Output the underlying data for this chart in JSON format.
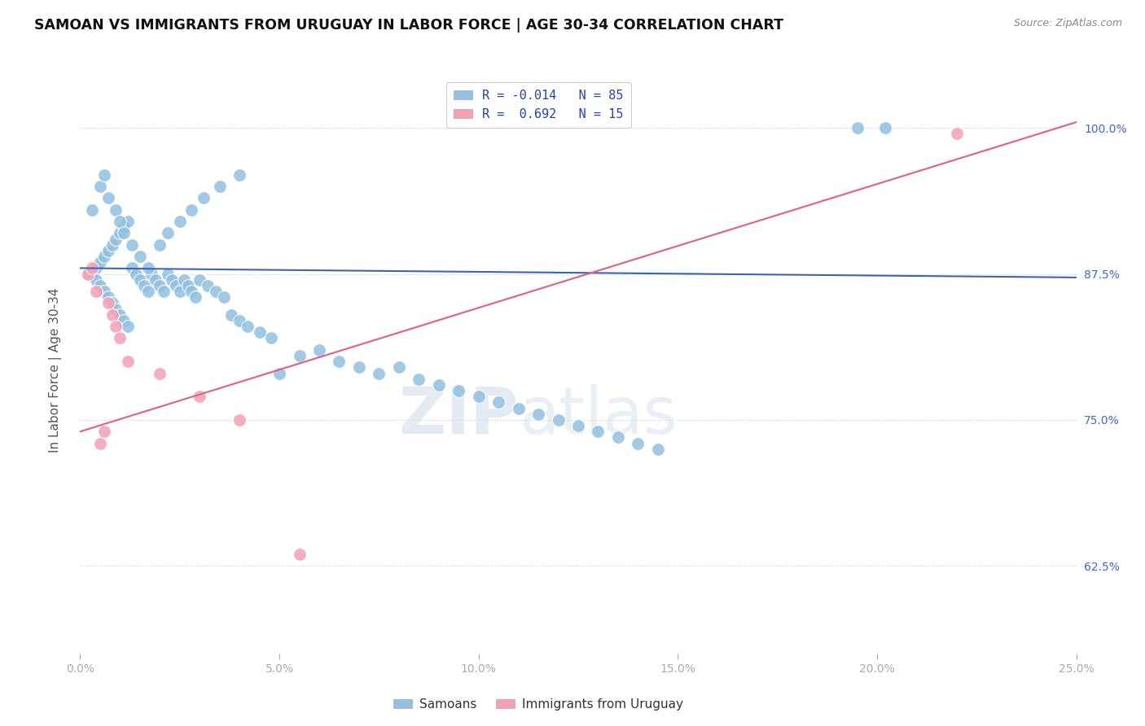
{
  "title": "SAMOAN VS IMMIGRANTS FROM URUGUAY IN LABOR FORCE | AGE 30-34 CORRELATION CHART",
  "source": "Source: ZipAtlas.com",
  "ylabel_label": "In Labor Force | Age 30-34",
  "xlim": [
    0.0,
    25.0
  ],
  "ylim": [
    55.0,
    103.5
  ],
  "yticks": [
    62.5,
    75.0,
    87.5,
    100.0
  ],
  "xticks": [
    0.0,
    5.0,
    10.0,
    15.0,
    20.0,
    25.0
  ],
  "blue_scatter_x": [
    0.2,
    0.3,
    0.4,
    0.4,
    0.5,
    0.5,
    0.6,
    0.6,
    0.7,
    0.7,
    0.8,
    0.8,
    0.9,
    0.9,
    1.0,
    1.0,
    1.1,
    1.1,
    1.2,
    1.2,
    1.3,
    1.4,
    1.5,
    1.6,
    1.7,
    1.8,
    1.9,
    2.0,
    2.1,
    2.2,
    2.3,
    2.4,
    2.5,
    2.6,
    2.7,
    2.8,
    2.9,
    3.0,
    3.2,
    3.4,
    3.6,
    3.8,
    4.0,
    4.2,
    4.5,
    4.8,
    5.0,
    5.5,
    6.0,
    6.5,
    7.0,
    7.5,
    8.0,
    8.5,
    9.0,
    9.5,
    10.0,
    10.5,
    11.0,
    11.5,
    12.0,
    12.5,
    13.0,
    13.5,
    14.0,
    14.5,
    0.3,
    0.5,
    0.6,
    0.7,
    0.9,
    1.0,
    1.1,
    1.3,
    1.5,
    1.7,
    2.0,
    2.2,
    2.5,
    2.8,
    3.1,
    3.5,
    4.0,
    19.5,
    20.2
  ],
  "blue_scatter_y": [
    87.5,
    87.5,
    88.0,
    87.0,
    88.5,
    86.5,
    89.0,
    86.0,
    89.5,
    85.5,
    90.0,
    85.0,
    90.5,
    84.5,
    91.0,
    84.0,
    91.5,
    83.5,
    92.0,
    83.0,
    88.0,
    87.5,
    87.0,
    86.5,
    86.0,
    87.5,
    87.0,
    86.5,
    86.0,
    87.5,
    87.0,
    86.5,
    86.0,
    87.0,
    86.5,
    86.0,
    85.5,
    87.0,
    86.5,
    86.0,
    85.5,
    84.0,
    83.5,
    83.0,
    82.5,
    82.0,
    79.0,
    80.5,
    81.0,
    80.0,
    79.5,
    79.0,
    79.5,
    78.5,
    78.0,
    77.5,
    77.0,
    76.5,
    76.0,
    75.5,
    75.0,
    74.5,
    74.0,
    73.5,
    73.0,
    72.5,
    93.0,
    95.0,
    96.0,
    94.0,
    93.0,
    92.0,
    91.0,
    90.0,
    89.0,
    88.0,
    90.0,
    91.0,
    92.0,
    93.0,
    94.0,
    95.0,
    96.0,
    100.0,
    100.0
  ],
  "pink_scatter_x": [
    0.2,
    0.3,
    0.4,
    0.5,
    0.6,
    0.7,
    0.8,
    0.9,
    1.0,
    1.2,
    2.0,
    3.0,
    4.0,
    5.5,
    22.0
  ],
  "pink_scatter_y": [
    87.5,
    88.0,
    86.0,
    73.0,
    74.0,
    85.0,
    84.0,
    83.0,
    82.0,
    80.0,
    79.0,
    77.0,
    75.0,
    63.5,
    99.5
  ],
  "blue_line_x": [
    0.0,
    25.0
  ],
  "blue_line_y": [
    88.0,
    87.2
  ],
  "pink_line_x": [
    0.0,
    25.0
  ],
  "pink_line_y": [
    74.0,
    100.5
  ],
  "scatter_color_blue": "#92c0e0",
  "scatter_color_pink": "#f4a0b5",
  "line_color_blue": "#3a65b0",
  "line_color_pink": "#e06080",
  "watermark_zip": "ZIP",
  "watermark_atlas": "atlas",
  "background_color": "#ffffff",
  "grid_color": "#cccccc",
  "legend_entries": [
    {
      "label": "R = -0.014   N = 85"
    },
    {
      "label": "R =  0.692   N = 15"
    }
  ],
  "legend_bottom": [
    "Samoans",
    "Immigrants from Uruguay"
  ]
}
